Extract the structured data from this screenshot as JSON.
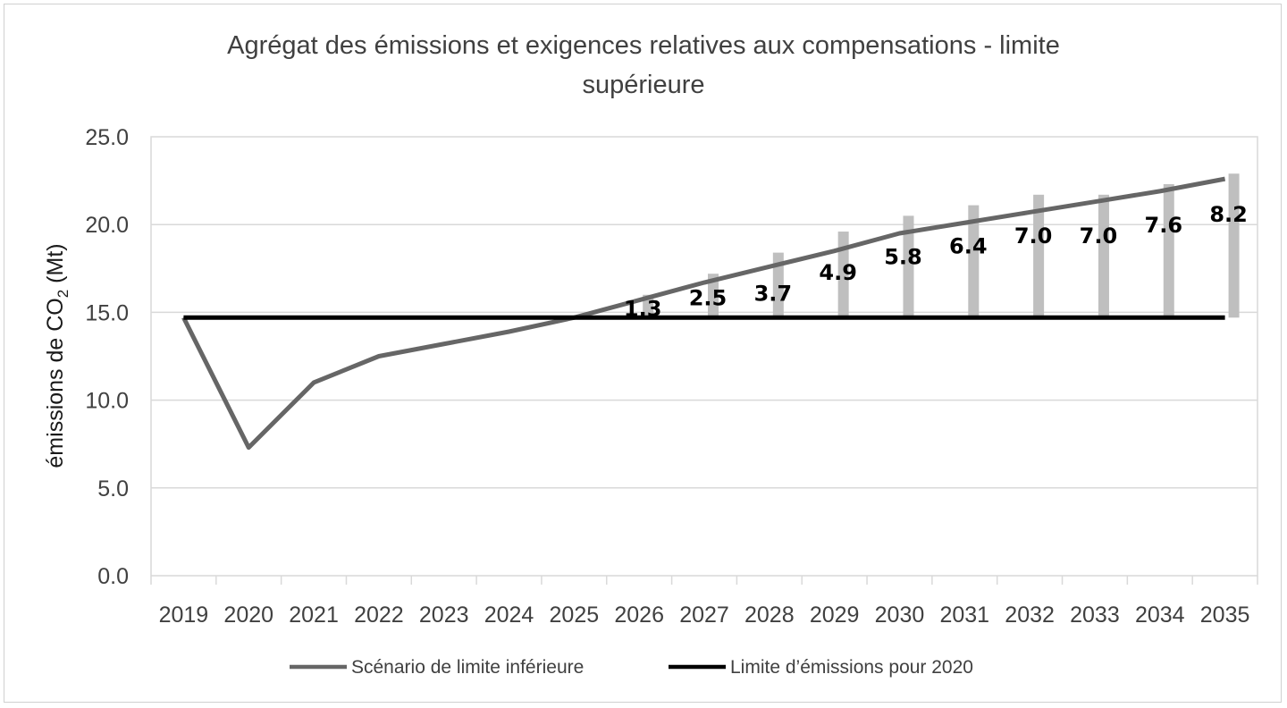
{
  "chart_data": {
    "type": "line",
    "title_lines": [
      "Agrégat des émissions et exigences relatives aux compensations - limite",
      "supérieure"
    ],
    "ylabel": "émissions de CO",
    "ylabel_subscript": "2",
    "ylabel_suffix": " (Mt)",
    "ylim": [
      0,
      25
    ],
    "yticks": [
      "0.0",
      "5.0",
      "10.0",
      "15.0",
      "20.0",
      "25.0"
    ],
    "ytick_values": [
      0,
      5,
      10,
      15,
      20,
      25
    ],
    "grid": true,
    "legend_position": "bottom",
    "categories": [
      "2019",
      "2020",
      "2021",
      "2022",
      "2023",
      "2024",
      "2025",
      "2026",
      "2027",
      "2028",
      "2029",
      "2030",
      "2031",
      "2032",
      "2033",
      "2034",
      "2035"
    ],
    "series": [
      {
        "name": "Scénario de limite inférieure",
        "color": "#666666",
        "values": [
          14.7,
          7.3,
          11.0,
          12.5,
          13.2,
          13.9,
          14.7,
          15.7,
          16.7,
          17.6,
          18.5,
          19.5,
          20.1,
          20.7,
          21.3,
          21.9,
          22.6
        ]
      },
      {
        "name": "Limite d’émissions pour 2020",
        "color": "#000000",
        "values": [
          14.7,
          14.7,
          14.7,
          14.7,
          14.7,
          14.7,
          14.7,
          14.7,
          14.7,
          14.7,
          14.7,
          14.7,
          14.7,
          14.7,
          14.7,
          14.7,
          14.7
        ]
      }
    ],
    "offset_bars": {
      "color": "#bfbfbf",
      "base": 14.7,
      "categories": [
        "2026",
        "2027",
        "2028",
        "2029",
        "2030",
        "2031",
        "2032",
        "2033",
        "2034",
        "2035"
      ],
      "values": [
        1.3,
        2.5,
        3.7,
        4.9,
        5.8,
        6.4,
        7.0,
        7.0,
        7.6,
        8.2
      ],
      "labels": [
        "1.3",
        "2.5",
        "3.7",
        "4.9",
        "5.8",
        "6.4",
        "7.0",
        "7.0",
        "7.6",
        "8.2"
      ]
    }
  }
}
